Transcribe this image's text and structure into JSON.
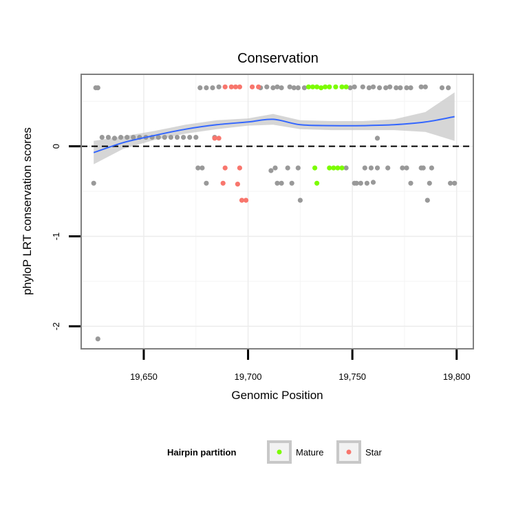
{
  "chart_data": {
    "type": "scatter",
    "title": "Conservation",
    "xlabel": "Genomic Position",
    "ylabel": "phyloP LRT conservation scores",
    "xlim": [
      19620,
      19808
    ],
    "ylim": [
      -2.25,
      0.8
    ],
    "x_ticks": [
      19650,
      19700,
      19750,
      19800
    ],
    "x_tick_labels": [
      "19,650",
      "19,700",
      "19,750",
      "19,800"
    ],
    "y_ticks": [
      -2,
      -1,
      0
    ],
    "y_tick_labels": [
      "-2",
      "-1",
      "0"
    ],
    "reference_line": {
      "y": 0,
      "style": "dashed"
    },
    "legend": {
      "title": "Hairpin partition",
      "entries": [
        {
          "label": "Mature",
          "color": "#7CFC00"
        },
        {
          "label": "Star",
          "color": "#F8766D"
        }
      ]
    },
    "colors": {
      "Other": "#999999",
      "Mature": "#7CFC00",
      "Star": "#F8766D",
      "smooth": "#3366FF",
      "band": "#C8C8C8"
    },
    "series": [
      {
        "name": "Other",
        "points": [
          [
            19627,
            0.65
          ],
          [
            19628,
            0.65
          ],
          [
            19677,
            0.65
          ],
          [
            19680,
            0.65
          ],
          [
            19683,
            0.65
          ],
          [
            19686,
            0.66
          ],
          [
            19706,
            0.65
          ],
          [
            19709,
            0.66
          ],
          [
            19712,
            0.65
          ],
          [
            19714,
            0.66
          ],
          [
            19716,
            0.65
          ],
          [
            19720,
            0.66
          ],
          [
            19722,
            0.65
          ],
          [
            19724,
            0.65
          ],
          [
            19727,
            0.65
          ],
          [
            19749,
            0.65
          ],
          [
            19751,
            0.66
          ],
          [
            19755,
            0.66
          ],
          [
            19758,
            0.65
          ],
          [
            19760,
            0.66
          ],
          [
            19763,
            0.65
          ],
          [
            19766,
            0.65
          ],
          [
            19768,
            0.66
          ],
          [
            19771,
            0.65
          ],
          [
            19773,
            0.65
          ],
          [
            19776,
            0.65
          ],
          [
            19778,
            0.65
          ],
          [
            19783,
            0.66
          ],
          [
            19785,
            0.66
          ],
          [
            19793,
            0.65
          ],
          [
            19796,
            0.65
          ],
          [
            19630,
            0.1
          ],
          [
            19633,
            0.1
          ],
          [
            19636,
            0.09
          ],
          [
            19639,
            0.1
          ],
          [
            19642,
            0.1
          ],
          [
            19645,
            0.1
          ],
          [
            19648,
            0.1
          ],
          [
            19651,
            0.1
          ],
          [
            19654,
            0.1
          ],
          [
            19657,
            0.1
          ],
          [
            19660,
            0.1
          ],
          [
            19663,
            0.1
          ],
          [
            19666,
            0.1
          ],
          [
            19669,
            0.1
          ],
          [
            19672,
            0.1
          ],
          [
            19675,
            0.1
          ],
          [
            19684,
            0.1
          ],
          [
            19762,
            0.09
          ],
          [
            19626,
            -0.41
          ],
          [
            19676,
            -0.24
          ],
          [
            19678,
            -0.24
          ],
          [
            19680,
            -0.41
          ],
          [
            19711,
            -0.27
          ],
          [
            19713,
            -0.24
          ],
          [
            19714,
            -0.41
          ],
          [
            19716,
            -0.41
          ],
          [
            19719,
            -0.24
          ],
          [
            19721,
            -0.41
          ],
          [
            19724,
            -0.24
          ],
          [
            19725,
            -0.6
          ],
          [
            19747,
            -0.24
          ],
          [
            19751,
            -0.41
          ],
          [
            19752,
            -0.41
          ],
          [
            19754,
            -0.41
          ],
          [
            19756,
            -0.24
          ],
          [
            19757,
            -0.41
          ],
          [
            19759,
            -0.24
          ],
          [
            19760,
            -0.4
          ],
          [
            19762,
            -0.24
          ],
          [
            19767,
            -0.24
          ],
          [
            19774,
            -0.24
          ],
          [
            19776,
            -0.24
          ],
          [
            19778,
            -0.41
          ],
          [
            19783,
            -0.24
          ],
          [
            19784,
            -0.24
          ],
          [
            19786,
            -0.6
          ],
          [
            19787,
            -0.41
          ],
          [
            19788,
            -0.24
          ],
          [
            19797,
            -0.41
          ],
          [
            19799,
            -0.41
          ],
          [
            19628,
            -2.14
          ]
        ]
      },
      {
        "name": "Mature",
        "points": [
          [
            19729,
            0.66
          ],
          [
            19731,
            0.66
          ],
          [
            19733,
            0.66
          ],
          [
            19735,
            0.65
          ],
          [
            19737,
            0.66
          ],
          [
            19739,
            0.66
          ],
          [
            19742,
            0.66
          ],
          [
            19745,
            0.66
          ],
          [
            19747,
            0.66
          ],
          [
            19732,
            -0.24
          ],
          [
            19733,
            -0.41
          ],
          [
            19739,
            -0.24
          ],
          [
            19741,
            -0.24
          ],
          [
            19743,
            -0.24
          ],
          [
            19745,
            -0.24
          ]
        ]
      },
      {
        "name": "Star",
        "points": [
          [
            19689,
            0.66
          ],
          [
            19692,
            0.66
          ],
          [
            19694,
            0.66
          ],
          [
            19696,
            0.66
          ],
          [
            19702,
            0.66
          ],
          [
            19705,
            0.66
          ],
          [
            19684,
            0.09
          ],
          [
            19686,
            0.09
          ],
          [
            19688,
            -0.41
          ],
          [
            19689,
            -0.24
          ],
          [
            19695,
            -0.42
          ],
          [
            19696,
            -0.24
          ],
          [
            19697,
            -0.6
          ],
          [
            19699,
            -0.6
          ]
        ]
      }
    ],
    "smooth": {
      "x": [
        19626,
        19640,
        19655,
        19670,
        19685,
        19700,
        19712,
        19725,
        19740,
        19755,
        19770,
        19785,
        19799
      ],
      "y": [
        -0.07,
        0.04,
        0.12,
        0.19,
        0.24,
        0.27,
        0.3,
        0.24,
        0.23,
        0.23,
        0.24,
        0.27,
        0.33
      ],
      "lower": [
        -0.2,
        -0.03,
        0.07,
        0.14,
        0.19,
        0.23,
        0.24,
        0.19,
        0.18,
        0.18,
        0.18,
        0.16,
        0.06
      ],
      "upper": [
        0.06,
        0.11,
        0.17,
        0.24,
        0.29,
        0.31,
        0.36,
        0.29,
        0.28,
        0.28,
        0.3,
        0.38,
        0.6
      ]
    }
  }
}
